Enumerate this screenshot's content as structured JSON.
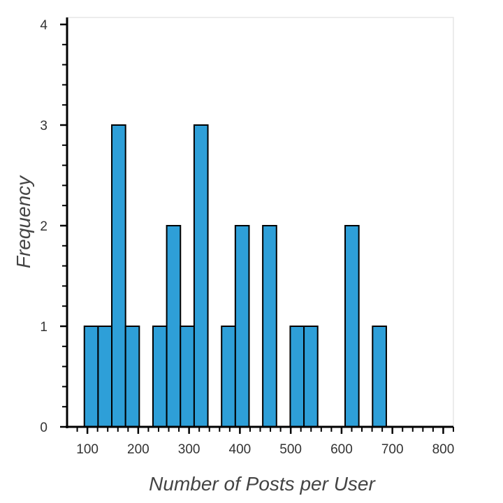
{
  "chart_data": {
    "type": "bar",
    "title": "",
    "xlabel": "Number of Posts per User",
    "ylabel": "Frequency",
    "xlim": [
      60,
      820
    ],
    "ylim": [
      0,
      4
    ],
    "grid": false,
    "bar_color": "#2e9fd8",
    "x_ticks": [
      100,
      200,
      300,
      400,
      500,
      600,
      700,
      800
    ],
    "x_tick_labels": [
      "100",
      "200",
      "300",
      "400",
      "500",
      "600",
      "700",
      "800"
    ],
    "y_ticks": [
      0,
      1,
      2,
      3,
      4
    ],
    "y_tick_labels": [
      "0",
      "1",
      "2",
      "3",
      "4"
    ],
    "bins": [
      {
        "x0": 94,
        "x1": 121,
        "value": 1
      },
      {
        "x0": 121,
        "x1": 148,
        "value": 1
      },
      {
        "x0": 148,
        "x1": 175,
        "value": 3
      },
      {
        "x0": 175,
        "x1": 202,
        "value": 1
      },
      {
        "x0": 202,
        "x1": 229,
        "value": 0
      },
      {
        "x0": 229,
        "x1": 256,
        "value": 1
      },
      {
        "x0": 256,
        "x1": 283,
        "value": 2
      },
      {
        "x0": 283,
        "x1": 310,
        "value": 1
      },
      {
        "x0": 310,
        "x1": 337,
        "value": 3
      },
      {
        "x0": 337,
        "x1": 364,
        "value": 0
      },
      {
        "x0": 364,
        "x1": 391,
        "value": 1
      },
      {
        "x0": 391,
        "x1": 418,
        "value": 2
      },
      {
        "x0": 418,
        "x1": 445,
        "value": 0
      },
      {
        "x0": 445,
        "x1": 472,
        "value": 2
      },
      {
        "x0": 472,
        "x1": 499,
        "value": 0
      },
      {
        "x0": 499,
        "x1": 526,
        "value": 1
      },
      {
        "x0": 526,
        "x1": 553,
        "value": 1
      },
      {
        "x0": 553,
        "x1": 580,
        "value": 0
      },
      {
        "x0": 580,
        "x1": 607,
        "value": 0
      },
      {
        "x0": 607,
        "x1": 634,
        "value": 2
      },
      {
        "x0": 634,
        "x1": 661,
        "value": 0
      },
      {
        "x0": 661,
        "x1": 688,
        "value": 1
      },
      {
        "x0": 688,
        "x1": 715,
        "value": 0
      },
      {
        "x0": 715,
        "x1": 742,
        "value": 0
      },
      {
        "x0": 742,
        "x1": 769,
        "value": 0
      },
      {
        "x0": 769,
        "x1": 796,
        "value": 0
      },
      {
        "x0": 796,
        "x1": 823,
        "value": 0
      }
    ]
  }
}
